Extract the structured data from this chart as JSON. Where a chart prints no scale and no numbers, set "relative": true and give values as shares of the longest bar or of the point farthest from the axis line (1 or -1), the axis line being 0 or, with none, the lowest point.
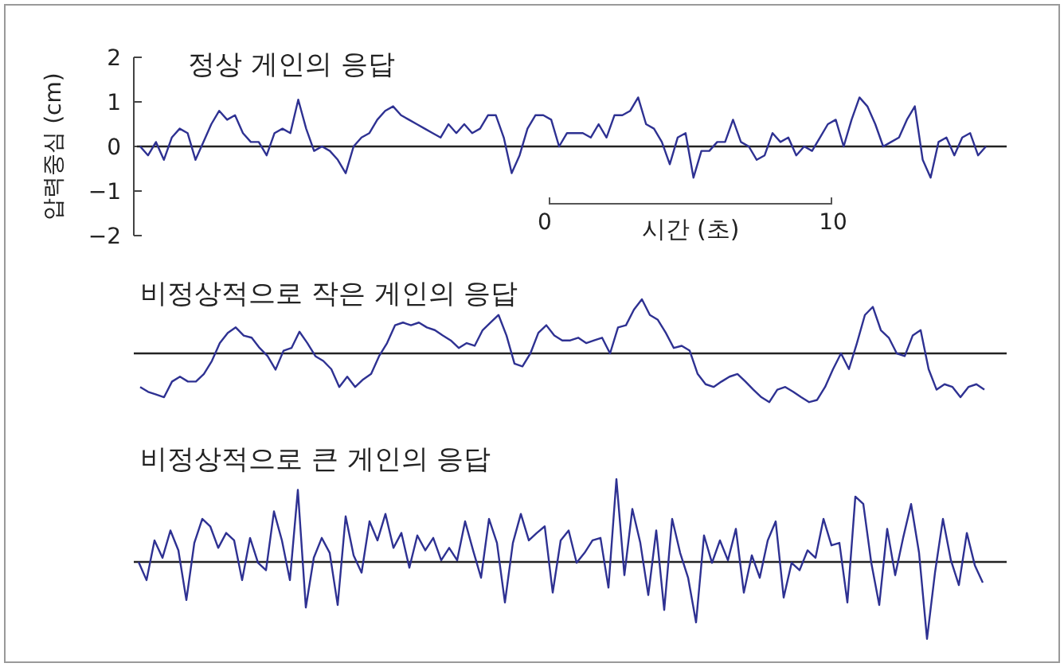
{
  "chart_data": [
    {
      "type": "line",
      "title": "정상 게인의 응답",
      "ylabel": "압력중심 (cm)",
      "ylim": [
        -2,
        2
      ],
      "yticks": [
        -2,
        -1,
        0,
        1,
        2
      ],
      "tick_labels": "y",
      "annotations": [
        "0",
        "10",
        "시간 (초)"
      ],
      "ref_lines": [
        {
          "axis": "y",
          "value": 0,
          "color": "#222222"
        }
      ],
      "categories": [
        null,
        null,
        null,
        null,
        null,
        null,
        null,
        null,
        null,
        null,
        null,
        null,
        null,
        null,
        null,
        null,
        null,
        null,
        null,
        null,
        null,
        null,
        null,
        null,
        null,
        null,
        null,
        null,
        null,
        null,
        null,
        null,
        null,
        null,
        null,
        null,
        null,
        null,
        null,
        null,
        null,
        null,
        null,
        null,
        null,
        null,
        null,
        null,
        null,
        null,
        null,
        null,
        null,
        null,
        null,
        null,
        null,
        null,
        null,
        null,
        null,
        null,
        null,
        null,
        null,
        null,
        null,
        null,
        null,
        null,
        null,
        null,
        null,
        null,
        null,
        null,
        null,
        null,
        null,
        null,
        null,
        null,
        null,
        null,
        null,
        null,
        null,
        null,
        null,
        null,
        null,
        null,
        null,
        null,
        null,
        null,
        null,
        null,
        null,
        null,
        null,
        null,
        null,
        null,
        null,
        null,
        null,
        null
      ],
      "series": [
        {
          "color": "#2e3192",
          "values": [
            0,
            -0.2,
            0.1,
            -0.3,
            0.2,
            0.4,
            0.3,
            -0.3,
            0.1,
            0.5,
            0.8,
            0.6,
            0.7,
            0.3,
            0.1,
            0.1,
            -0.2,
            0.3,
            0.4,
            0.3,
            1.05,
            0.4,
            -0.1,
            0.0,
            -0.1,
            -0.3,
            -0.6,
            0.0,
            0.2,
            0.3,
            0.6,
            0.8,
            0.9,
            0.7,
            0.6,
            0.5,
            0.4,
            0.3,
            0.2,
            0.5,
            0.3,
            0.5,
            0.3,
            0.4,
            0.7,
            0.7,
            0.2,
            -0.6,
            -0.2,
            0.4,
            0.7,
            0.7,
            0.6,
            0.0,
            0.3,
            0.3,
            0.3,
            0.2,
            0.5,
            0.2,
            0.7,
            0.7,
            0.8,
            1.1,
            0.5,
            0.4,
            0.1,
            -0.4,
            0.2,
            0.3,
            -0.7,
            -0.1,
            -0.1,
            0.1,
            0.1,
            0.6,
            0.1,
            0.0,
            -0.3,
            -0.2,
            0.3,
            0.1,
            0.2,
            -0.2,
            0.0,
            -0.1,
            0.2,
            0.5,
            0.6,
            0.0,
            0.6,
            1.1,
            0.9,
            0.5,
            0.0,
            0.1,
            0.2,
            0.6,
            0.9,
            -0.3,
            -0.7,
            0.1,
            0.2,
            -0.2,
            0.2,
            0.3,
            -0.2,
            0.0
          ]
        }
      ]
    },
    {
      "type": "line",
      "title": "비정상적으로 작은 게인의 응답",
      "relative": true,
      "tick_labels": false,
      "categories": [
        null,
        null,
        null,
        null,
        null,
        null,
        null,
        null,
        null,
        null,
        null,
        null,
        null,
        null,
        null,
        null,
        null,
        null,
        null,
        null,
        null,
        null,
        null,
        null,
        null,
        null,
        null,
        null,
        null,
        null,
        null,
        null,
        null,
        null,
        null,
        null,
        null,
        null,
        null,
        null,
        null,
        null,
        null,
        null,
        null,
        null,
        null,
        null,
        null,
        null,
        null,
        null,
        null,
        null,
        null,
        null,
        null,
        null,
        null,
        null,
        null,
        null,
        null,
        null,
        null,
        null,
        null,
        null,
        null,
        null,
        null,
        null,
        null,
        null,
        null,
        null,
        null,
        null,
        null,
        null,
        null,
        null,
        null,
        null,
        null,
        null,
        null,
        null,
        null,
        null,
        null,
        null,
        null,
        null,
        null,
        null,
        null,
        null,
        null,
        null,
        null,
        null,
        null,
        null,
        null,
        null,
        null
      ],
      "series": [
        {
          "color": "#2e3192",
          "values": [
            -0.62,
            -0.71,
            -0.76,
            -0.81,
            -0.52,
            -0.43,
            -0.52,
            -0.52,
            -0.38,
            -0.14,
            0.19,
            0.38,
            0.48,
            0.33,
            0.29,
            0.1,
            -0.05,
            -0.3,
            0.05,
            0.1,
            0.4,
            0.19,
            -0.05,
            -0.14,
            -0.29,
            -0.62,
            -0.43,
            -0.62,
            -0.48,
            -0.38,
            -0.05,
            0.19,
            0.52,
            0.57,
            0.52,
            0.57,
            0.48,
            0.43,
            0.33,
            0.24,
            0.1,
            0.19,
            0.14,
            0.43,
            0.57,
            0.71,
            0.33,
            -0.19,
            -0.24,
            0.0,
            0.38,
            0.52,
            0.33,
            0.24,
            0.24,
            0.29,
            0.19,
            0.24,
            0.29,
            0,
            0.48,
            0.52,
            0.81,
            1.0,
            0.71,
            0.62,
            0.38,
            0.1,
            0.14,
            0.05,
            -0.38,
            -0.57,
            -0.62,
            -0.52,
            -0.43,
            -0.38,
            -0.52,
            -0.67,
            -0.81,
            -0.9,
            -0.67,
            -0.62,
            -0.71,
            -0.81,
            -0.9,
            -0.86,
            -0.62,
            -0.29,
            0,
            -0.29,
            0.19,
            0.71,
            0.86,
            0.43,
            0.29,
            0,
            -0.05,
            0.33,
            0.43,
            -0.29,
            -0.67,
            -0.57,
            -0.62,
            -0.81,
            -0.62,
            -0.57,
            -0.67
          ]
        }
      ]
    },
    {
      "type": "line",
      "title": "비정상적으로 큰 게인의 응답",
      "relative": true,
      "tick_labels": false,
      "categories": [
        null,
        null,
        null,
        null,
        null,
        null,
        null,
        null,
        null,
        null,
        null,
        null,
        null,
        null,
        null,
        null,
        null,
        null,
        null,
        null,
        null,
        null,
        null,
        null,
        null,
        null,
        null,
        null,
        null,
        null,
        null,
        null,
        null,
        null,
        null,
        null,
        null,
        null,
        null,
        null,
        null,
        null,
        null,
        null,
        null,
        null,
        null,
        null,
        null,
        null,
        null,
        null,
        null,
        null,
        null,
        null,
        null,
        null,
        null,
        null,
        null,
        null,
        null,
        null,
        null,
        null,
        null,
        null,
        null,
        null,
        null,
        null,
        null,
        null,
        null,
        null,
        null,
        null,
        null,
        null,
        null,
        null,
        null,
        null,
        null,
        null,
        null,
        null,
        null,
        null,
        null,
        null,
        null,
        null,
        null,
        null,
        null,
        null,
        null,
        null,
        null,
        null,
        null,
        null,
        null,
        null,
        null
      ],
      "series": [
        {
          "color": "#2e3192",
          "values": [
            0,
            -0.22,
            0.26,
            0.05,
            0.38,
            0.14,
            -0.46,
            0.23,
            0.52,
            0.43,
            0.17,
            0.35,
            0.26,
            -0.22,
            0.29,
            -0.01,
            -0.1,
            0.61,
            0.26,
            -0.22,
            0.87,
            -0.55,
            0.05,
            0.29,
            0.11,
            -0.52,
            0.55,
            0.08,
            -0.13,
            0.49,
            0.26,
            0.58,
            0.17,
            0.35,
            -0.07,
            0.32,
            0.14,
            0.29,
            0.02,
            0.17,
            0.02,
            0.49,
            0.14,
            -0.19,
            0.52,
            0.23,
            -0.49,
            0.23,
            0.58,
            0.26,
            0.35,
            0.43,
            -0.37,
            0.26,
            0.38,
            -0.01,
            0.11,
            0.26,
            0.29,
            -0.31,
            1.0,
            -0.16,
            0.64,
            0.23,
            -0.4,
            0.38,
            -0.58,
            0.52,
            0.11,
            -0.19,
            -0.73,
            0.32,
            -0.01,
            0.26,
            0.02,
            0.4,
            -0.37,
            0.08,
            -0.19,
            0.26,
            0.49,
            -0.43,
            -0.01,
            -0.1,
            0.14,
            0.05,
            0.52,
            0.2,
            0.23,
            -0.49,
            0.79,
            0.7,
            -0.01,
            -0.52,
            0.4,
            -0.16,
            0.29,
            0.7,
            0.11,
            -0.93,
            -0.13,
            0.52,
            0.02,
            -0.28,
            0.35,
            -0.04,
            -0.25
          ]
        }
      ]
    }
  ]
}
